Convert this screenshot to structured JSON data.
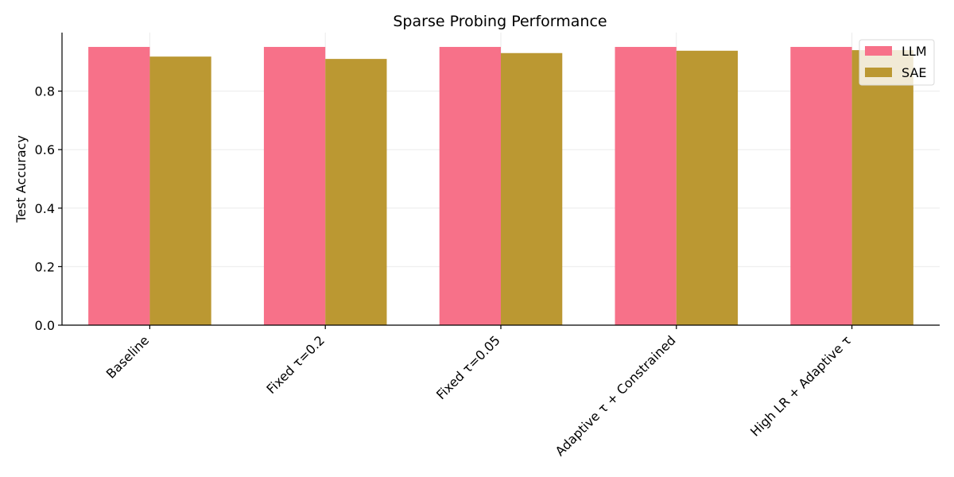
{
  "chart_data": {
    "type": "bar",
    "title": "Sparse Probing Performance",
    "xlabel": "",
    "ylabel": "Test Accuracy",
    "categories": [
      "Baseline",
      "Fixed τ=0.2",
      "Fixed τ=0.05",
      "Adaptive τ + Constrained",
      "High LR + Adaptive τ"
    ],
    "series": [
      {
        "name": "LLM",
        "values": [
          0.951,
          0.951,
          0.951,
          0.951,
          0.951
        ],
        "color": "#f77189"
      },
      {
        "name": "SAE",
        "values": [
          0.918,
          0.91,
          0.93,
          0.938,
          0.94
        ],
        "color": "#bb9832"
      }
    ],
    "ylim": [
      0,
      1.0
    ],
    "yticks": [
      0.0,
      0.2,
      0.4,
      0.6,
      0.8
    ],
    "ytick_labels": [
      "0.0",
      "0.2",
      "0.4",
      "0.6",
      "0.8"
    ],
    "grid": true,
    "legend_position": "top-right"
  }
}
